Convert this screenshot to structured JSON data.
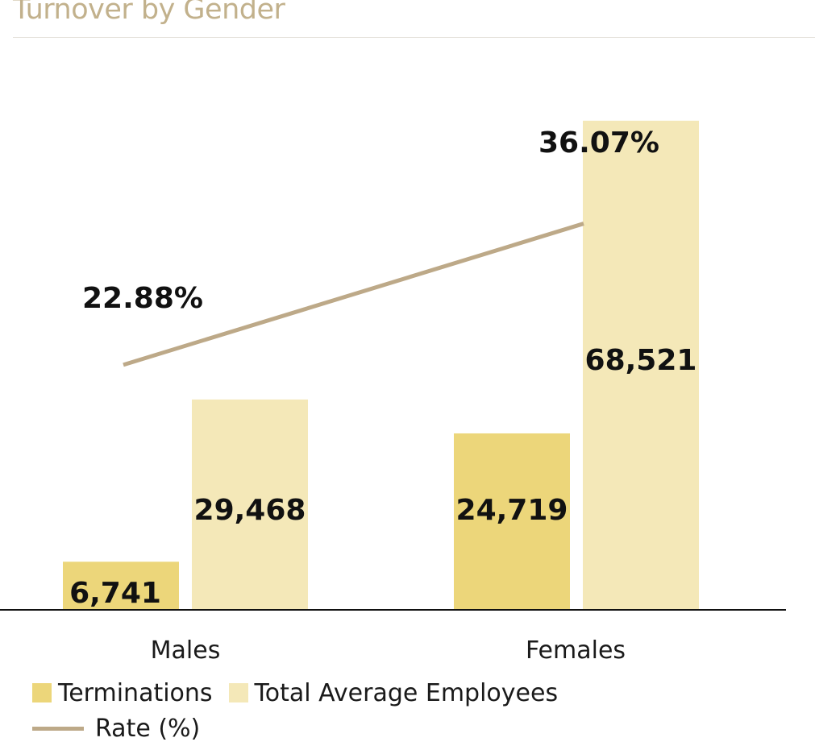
{
  "title": "Turnover by Gender",
  "chart_data": {
    "type": "bar",
    "title": "Turnover by Gender",
    "categories": [
      "Males",
      "Females"
    ],
    "series": [
      {
        "name": "Terminations",
        "type": "bar",
        "color": "#ecd67a",
        "values": [
          6741,
          24719
        ],
        "labels": [
          "6,741",
          "24,719"
        ]
      },
      {
        "name": "Total Average Employees",
        "type": "bar",
        "color": "#f4e8b8",
        "values": [
          29468,
          68521
        ],
        "labels": [
          "29,468",
          "68,521"
        ]
      },
      {
        "name": "Rate (%)",
        "type": "line",
        "color": "#bda988",
        "values": [
          22.88,
          36.07
        ],
        "labels": [
          "22.88%",
          "36.07%"
        ]
      }
    ],
    "ylim": [
      0,
      72000
    ],
    "rate_ylim": [
      0,
      48
    ],
    "grid": false,
    "legend_position": "bottom-left"
  }
}
